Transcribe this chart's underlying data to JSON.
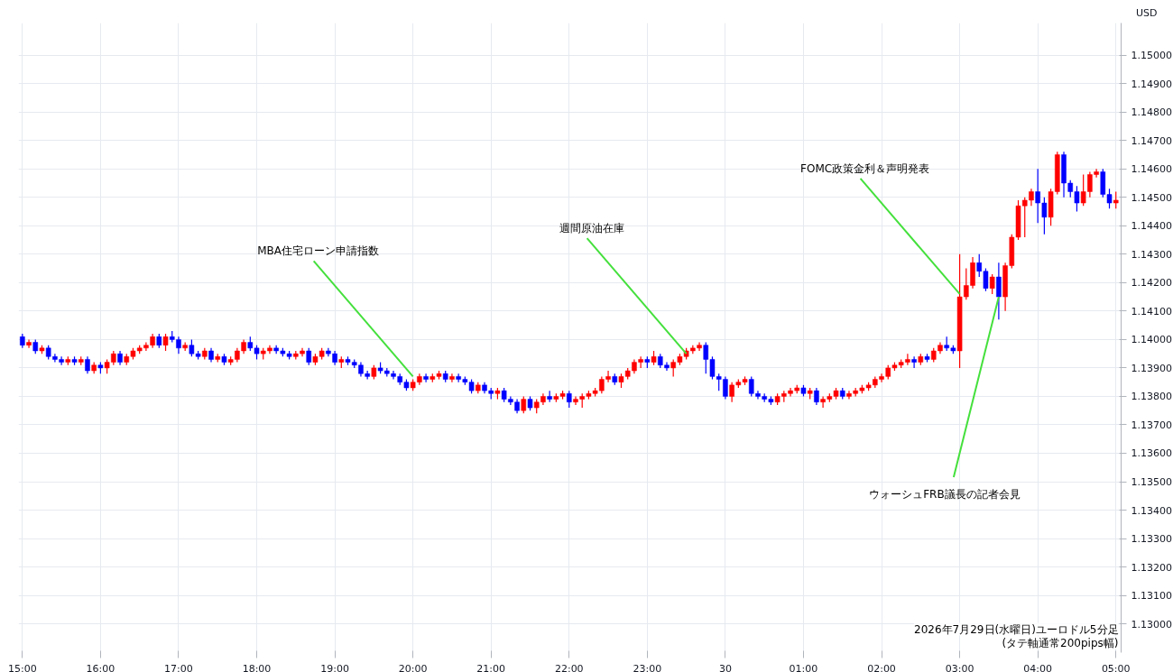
{
  "chart_data": {
    "type": "candlestick",
    "ylabel": "USD",
    "grid": true,
    "xlim": [
      "2026-07-29T14:57",
      "2026-07-30T05:04"
    ],
    "ylim": [
      1.12899,
      1.15113
    ],
    "xticks": [
      {
        "value": "2026-07-29T15:00",
        "label": "15:00"
      },
      {
        "value": "2026-07-29T16:00",
        "label": "16:00"
      },
      {
        "value": "2026-07-29T17:00",
        "label": "17:00"
      },
      {
        "value": "2026-07-29T18:00",
        "label": "18:00"
      },
      {
        "value": "2026-07-29T19:00",
        "label": "19:00"
      },
      {
        "value": "2026-07-29T20:00",
        "label": "20:00"
      },
      {
        "value": "2026-07-29T21:00",
        "label": "21:00"
      },
      {
        "value": "2026-07-29T22:00",
        "label": "22:00"
      },
      {
        "value": "2026-07-29T23:00",
        "label": "23:00"
      },
      {
        "value": "2026-07-30T00:00",
        "label": "30"
      },
      {
        "value": "2026-07-30T01:00",
        "label": "01:00"
      },
      {
        "value": "2026-07-30T02:00",
        "label": "02:00"
      },
      {
        "value": "2026-07-30T03:00",
        "label": "03:00"
      },
      {
        "value": "2026-07-30T04:00",
        "label": "04:00"
      },
      {
        "value": "2026-07-30T05:00",
        "label": "05:00"
      }
    ],
    "yticks": [
      {
        "value": 1.13,
        "label": "1.13000"
      },
      {
        "value": 1.131,
        "label": "1.13100"
      },
      {
        "value": 1.132,
        "label": "1.13200"
      },
      {
        "value": 1.133,
        "label": "1.13300"
      },
      {
        "value": 1.134,
        "label": "1.13400"
      },
      {
        "value": 1.135,
        "label": "1.13500"
      },
      {
        "value": 1.136,
        "label": "1.13600"
      },
      {
        "value": 1.137,
        "label": "1.13700"
      },
      {
        "value": 1.138,
        "label": "1.13800"
      },
      {
        "value": 1.139,
        "label": "1.13900"
      },
      {
        "value": 1.14,
        "label": "1.14000"
      },
      {
        "value": 1.141,
        "label": "1.14100"
      },
      {
        "value": 1.142,
        "label": "1.14200"
      },
      {
        "value": 1.143,
        "label": "1.14300"
      },
      {
        "value": 1.144,
        "label": "1.14400"
      },
      {
        "value": 1.145,
        "label": "1.14500"
      },
      {
        "value": 1.146,
        "label": "1.14600"
      },
      {
        "value": 1.147,
        "label": "1.14700"
      },
      {
        "value": 1.148,
        "label": "1.14800"
      },
      {
        "value": 1.149,
        "label": "1.14900"
      },
      {
        "value": 1.15,
        "label": "1.15000"
      }
    ],
    "annotations": [
      {
        "text": "MBA住宅ローン申請指数",
        "x": "2026-07-29T20:00",
        "y": 1.1387
      },
      {
        "text": "週間原油在庫",
        "x": "2026-07-29T23:30",
        "y": 1.1395
      },
      {
        "text": "FOMC政策金利＆声明発表",
        "x": "2026-07-30T03:00",
        "y": 1.1416
      },
      {
        "text": "ウォーシュFRB議長の記者会見",
        "x": "2026-07-30T03:30",
        "y": 1.1415
      },
      "2026年7月29日(水曜日)ユーロドル5分足",
      "(タテ軸通常200pips幅)"
    ],
    "x": [
      "2026-07-29T15:00",
      "2026-07-29T15:05",
      "2026-07-29T15:10",
      "2026-07-29T15:15",
      "2026-07-29T15:20",
      "2026-07-29T15:25",
      "2026-07-29T15:30",
      "2026-07-29T15:35",
      "2026-07-29T15:40",
      "2026-07-29T15:45",
      "2026-07-29T15:50",
      "2026-07-29T15:55",
      "2026-07-29T16:00",
      "2026-07-29T16:05",
      "2026-07-29T16:10",
      "2026-07-29T16:15",
      "2026-07-29T16:20",
      "2026-07-29T16:25",
      "2026-07-29T16:30",
      "2026-07-29T16:35",
      "2026-07-29T16:40",
      "2026-07-29T16:45",
      "2026-07-29T16:50",
      "2026-07-29T16:55",
      "2026-07-29T17:00",
      "2026-07-29T17:05",
      "2026-07-29T17:10",
      "2026-07-29T17:15",
      "2026-07-29T17:20",
      "2026-07-29T17:25",
      "2026-07-29T17:30",
      "2026-07-29T17:35",
      "2026-07-29T17:40",
      "2026-07-29T17:45",
      "2026-07-29T17:50",
      "2026-07-29T17:55",
      "2026-07-29T18:00",
      "2026-07-29T18:05",
      "2026-07-29T18:10",
      "2026-07-29T18:15",
      "2026-07-29T18:20",
      "2026-07-29T18:25",
      "2026-07-29T18:30",
      "2026-07-29T18:35",
      "2026-07-29T18:40",
      "2026-07-29T18:45",
      "2026-07-29T18:50",
      "2026-07-29T18:55",
      "2026-07-29T19:00",
      "2026-07-29T19:05",
      "2026-07-29T19:10",
      "2026-07-29T19:15",
      "2026-07-29T19:20",
      "2026-07-29T19:25",
      "2026-07-29T19:30",
      "2026-07-29T19:35",
      "2026-07-29T19:40",
      "2026-07-29T19:45",
      "2026-07-29T19:50",
      "2026-07-29T19:55",
      "2026-07-29T20:00",
      "2026-07-29T20:05",
      "2026-07-29T20:10",
      "2026-07-29T20:15",
      "2026-07-29T20:20",
      "2026-07-29T20:25",
      "2026-07-29T20:30",
      "2026-07-29T20:35",
      "2026-07-29T20:40",
      "2026-07-29T20:45",
      "2026-07-29T20:50",
      "2026-07-29T20:55",
      "2026-07-29T21:00",
      "2026-07-29T21:05",
      "2026-07-29T21:10",
      "2026-07-29T21:15",
      "2026-07-29T21:20",
      "2026-07-29T21:25",
      "2026-07-29T21:30",
      "2026-07-29T21:35",
      "2026-07-29T21:40",
      "2026-07-29T21:45",
      "2026-07-29T21:50",
      "2026-07-29T21:55",
      "2026-07-29T22:00",
      "2026-07-29T22:05",
      "2026-07-29T22:10",
      "2026-07-29T22:15",
      "2026-07-29T22:20",
      "2026-07-29T22:25",
      "2026-07-29T22:30",
      "2026-07-29T22:35",
      "2026-07-29T22:40",
      "2026-07-29T22:45",
      "2026-07-29T22:50",
      "2026-07-29T22:55",
      "2026-07-29T23:00",
      "2026-07-29T23:05",
      "2026-07-29T23:10",
      "2026-07-29T23:15",
      "2026-07-29T23:20",
      "2026-07-29T23:25",
      "2026-07-29T23:30",
      "2026-07-29T23:35",
      "2026-07-29T23:40",
      "2026-07-29T23:45",
      "2026-07-29T23:50",
      "2026-07-29T23:55",
      "2026-07-30T00:00",
      "2026-07-30T00:05",
      "2026-07-30T00:10",
      "2026-07-30T00:15",
      "2026-07-30T00:20",
      "2026-07-30T00:25",
      "2026-07-30T00:30",
      "2026-07-30T00:35",
      "2026-07-30T00:40",
      "2026-07-30T00:45",
      "2026-07-30T00:50",
      "2026-07-30T00:55",
      "2026-07-30T01:00",
      "2026-07-30T01:05",
      "2026-07-30T01:10",
      "2026-07-30T01:15",
      "2026-07-30T01:20",
      "2026-07-30T01:25",
      "2026-07-30T01:30",
      "2026-07-30T01:35",
      "2026-07-30T01:40",
      "2026-07-30T01:45",
      "2026-07-30T01:50",
      "2026-07-30T01:55",
      "2026-07-30T02:00",
      "2026-07-30T02:05",
      "2026-07-30T02:10",
      "2026-07-30T02:15",
      "2026-07-30T02:20",
      "2026-07-30T02:25",
      "2026-07-30T02:30",
      "2026-07-30T02:35",
      "2026-07-30T02:40",
      "2026-07-30T02:45",
      "2026-07-30T02:50",
      "2026-07-30T02:55",
      "2026-07-30T03:00",
      "2026-07-30T03:05",
      "2026-07-30T03:10",
      "2026-07-30T03:15",
      "2026-07-30T03:20",
      "2026-07-30T03:25",
      "2026-07-30T03:30",
      "2026-07-30T03:35",
      "2026-07-30T03:40",
      "2026-07-30T03:45",
      "2026-07-30T03:50",
      "2026-07-30T03:55",
      "2026-07-30T04:00",
      "2026-07-30T04:05",
      "2026-07-30T04:10",
      "2026-07-30T04:15",
      "2026-07-30T04:20",
      "2026-07-30T04:25",
      "2026-07-30T04:30",
      "2026-07-30T04:35",
      "2026-07-30T04:40",
      "2026-07-30T04:45",
      "2026-07-30T04:50",
      "2026-07-30T04:55",
      "2026-07-30T05:00"
    ],
    "ohlc": [
      [
        1.1401,
        1.1402,
        1.1397,
        1.1398
      ],
      [
        1.1398,
        1.14,
        1.1397,
        1.1399
      ],
      [
        1.1399,
        1.14,
        1.1395,
        1.1396
      ],
      [
        1.1396,
        1.1398,
        1.1395,
        1.1397
      ],
      [
        1.1397,
        1.1398,
        1.1393,
        1.1394
      ],
      [
        1.1394,
        1.1395,
        1.1392,
        1.1393
      ],
      [
        1.1393,
        1.1394,
        1.1391,
        1.1392
      ],
      [
        1.1392,
        1.1394,
        1.1391,
        1.1393
      ],
      [
        1.1393,
        1.1394,
        1.1391,
        1.1392
      ],
      [
        1.1392,
        1.1394,
        1.1391,
        1.1393
      ],
      [
        1.1393,
        1.1394,
        1.1388,
        1.1389
      ],
      [
        1.1389,
        1.1392,
        1.1388,
        1.1391
      ],
      [
        1.1391,
        1.1392,
        1.1388,
        1.139
      ],
      [
        1.139,
        1.1393,
        1.1388,
        1.1392
      ],
      [
        1.1392,
        1.1396,
        1.1391,
        1.1395
      ],
      [
        1.1395,
        1.1396,
        1.1391,
        1.1392
      ],
      [
        1.1392,
        1.1395,
        1.1391,
        1.1394
      ],
      [
        1.1394,
        1.1397,
        1.1393,
        1.1396
      ],
      [
        1.1396,
        1.1398,
        1.1395,
        1.1397
      ],
      [
        1.1397,
        1.1399,
        1.1396,
        1.1398
      ],
      [
        1.1398,
        1.1402,
        1.1397,
        1.1401
      ],
      [
        1.1401,
        1.1402,
        1.1397,
        1.1398
      ],
      [
        1.1398,
        1.1402,
        1.1396,
        1.1401
      ],
      [
        1.1401,
        1.1403,
        1.1399,
        1.14
      ],
      [
        1.14,
        1.1401,
        1.1395,
        1.1397
      ],
      [
        1.1397,
        1.1399,
        1.1396,
        1.1398
      ],
      [
        1.1398,
        1.14,
        1.1394,
        1.1395
      ],
      [
        1.1395,
        1.1396,
        1.1393,
        1.1394
      ],
      [
        1.1394,
        1.1397,
        1.1393,
        1.1396
      ],
      [
        1.1396,
        1.1397,
        1.1392,
        1.1393
      ],
      [
        1.1393,
        1.1395,
        1.1392,
        1.1394
      ],
      [
        1.1394,
        1.1395,
        1.1391,
        1.1392
      ],
      [
        1.1392,
        1.1394,
        1.1391,
        1.1393
      ],
      [
        1.1393,
        1.1397,
        1.1392,
        1.1396
      ],
      [
        1.1396,
        1.14,
        1.1395,
        1.1399
      ],
      [
        1.1399,
        1.1401,
        1.1396,
        1.1397
      ],
      [
        1.1397,
        1.1398,
        1.1393,
        1.1395
      ],
      [
        1.1395,
        1.1397,
        1.1393,
        1.1396
      ],
      [
        1.1396,
        1.1398,
        1.1395,
        1.1397
      ],
      [
        1.1397,
        1.1398,
        1.1395,
        1.1396
      ],
      [
        1.1396,
        1.1397,
        1.1394,
        1.1395
      ],
      [
        1.1395,
        1.1396,
        1.1393,
        1.1394
      ],
      [
        1.1394,
        1.1396,
        1.1393,
        1.1395
      ],
      [
        1.1395,
        1.1397,
        1.1394,
        1.1396
      ],
      [
        1.1396,
        1.1397,
        1.1391,
        1.1392
      ],
      [
        1.1392,
        1.1395,
        1.1391,
        1.1394
      ],
      [
        1.1394,
        1.1397,
        1.1393,
        1.1396
      ],
      [
        1.1396,
        1.1397,
        1.1394,
        1.1395
      ],
      [
        1.1395,
        1.1396,
        1.1391,
        1.1392
      ],
      [
        1.1392,
        1.1394,
        1.139,
        1.1393
      ],
      [
        1.1393,
        1.1394,
        1.1391,
        1.1392
      ],
      [
        1.1392,
        1.1393,
        1.139,
        1.1391
      ],
      [
        1.1391,
        1.1392,
        1.1387,
        1.1388
      ],
      [
        1.1388,
        1.1389,
        1.1386,
        1.1387
      ],
      [
        1.1387,
        1.1391,
        1.1386,
        1.139
      ],
      [
        1.139,
        1.1392,
        1.1388,
        1.1389
      ],
      [
        1.1389,
        1.139,
        1.1387,
        1.1388
      ],
      [
        1.1388,
        1.1389,
        1.1386,
        1.1387
      ],
      [
        1.1387,
        1.1388,
        1.1384,
        1.1385
      ],
      [
        1.1385,
        1.1386,
        1.1382,
        1.1383
      ],
      [
        1.1383,
        1.1386,
        1.1382,
        1.1385
      ],
      [
        1.1385,
        1.1388,
        1.1384,
        1.1387
      ],
      [
        1.1387,
        1.1388,
        1.1385,
        1.1386
      ],
      [
        1.1386,
        1.1388,
        1.1385,
        1.1387
      ],
      [
        1.1387,
        1.1389,
        1.1386,
        1.1388
      ],
      [
        1.1388,
        1.1389,
        1.1385,
        1.1386
      ],
      [
        1.1386,
        1.1388,
        1.1385,
        1.1387
      ],
      [
        1.1387,
        1.1388,
        1.1385,
        1.1386
      ],
      [
        1.1386,
        1.1387,
        1.1384,
        1.1385
      ],
      [
        1.1385,
        1.1386,
        1.1381,
        1.1382
      ],
      [
        1.1382,
        1.1385,
        1.1381,
        1.1384
      ],
      [
        1.1384,
        1.1385,
        1.1381,
        1.1382
      ],
      [
        1.1382,
        1.1383,
        1.1379,
        1.1381
      ],
      [
        1.1381,
        1.1383,
        1.1379,
        1.1382
      ],
      [
        1.1382,
        1.1383,
        1.1378,
        1.1379
      ],
      [
        1.1379,
        1.138,
        1.1377,
        1.1378
      ],
      [
        1.1378,
        1.1379,
        1.1374,
        1.1375
      ],
      [
        1.1375,
        1.138,
        1.1374,
        1.1379
      ],
      [
        1.1379,
        1.138,
        1.1375,
        1.1376
      ],
      [
        1.1376,
        1.1379,
        1.1374,
        1.1378
      ],
      [
        1.1378,
        1.1381,
        1.1377,
        1.138
      ],
      [
        1.138,
        1.1382,
        1.1378,
        1.1379
      ],
      [
        1.1379,
        1.1381,
        1.1378,
        1.138
      ],
      [
        1.138,
        1.1382,
        1.1379,
        1.1381
      ],
      [
        1.1381,
        1.1382,
        1.1376,
        1.1378
      ],
      [
        1.1378,
        1.138,
        1.1377,
        1.1379
      ],
      [
        1.1379,
        1.1381,
        1.1376,
        1.138
      ],
      [
        1.138,
        1.1382,
        1.1379,
        1.1381
      ],
      [
        1.1381,
        1.1383,
        1.138,
        1.1382
      ],
      [
        1.1382,
        1.1387,
        1.1381,
        1.1386
      ],
      [
        1.1386,
        1.1389,
        1.1385,
        1.1387
      ],
      [
        1.1387,
        1.1388,
        1.1384,
        1.1385
      ],
      [
        1.1385,
        1.1388,
        1.1383,
        1.1387
      ],
      [
        1.1387,
        1.139,
        1.1386,
        1.1389
      ],
      [
        1.1389,
        1.1393,
        1.1388,
        1.1392
      ],
      [
        1.1392,
        1.1394,
        1.139,
        1.1393
      ],
      [
        1.1393,
        1.1394,
        1.139,
        1.1392
      ],
      [
        1.1392,
        1.1396,
        1.1391,
        1.1394
      ],
      [
        1.1394,
        1.1395,
        1.139,
        1.1391
      ],
      [
        1.1391,
        1.1392,
        1.1389,
        1.139
      ],
      [
        1.139,
        1.1393,
        1.1387,
        1.1392
      ],
      [
        1.1392,
        1.1395,
        1.1391,
        1.1394
      ],
      [
        1.1394,
        1.1397,
        1.1393,
        1.1396
      ],
      [
        1.1396,
        1.1398,
        1.1395,
        1.1397
      ],
      [
        1.1397,
        1.1399,
        1.1396,
        1.1398
      ],
      [
        1.1398,
        1.1399,
        1.1388,
        1.1393
      ],
      [
        1.1393,
        1.1394,
        1.1386,
        1.1387
      ],
      [
        1.1387,
        1.1388,
        1.1382,
        1.1386
      ],
      [
        1.1386,
        1.1387,
        1.1379,
        1.138
      ],
      [
        1.138,
        1.1385,
        1.1378,
        1.1384
      ],
      [
        1.1384,
        1.1386,
        1.1383,
        1.1385
      ],
      [
        1.1385,
        1.1387,
        1.1384,
        1.1386
      ],
      [
        1.1386,
        1.1387,
        1.138,
        1.1381
      ],
      [
        1.1381,
        1.1382,
        1.1379,
        1.138
      ],
      [
        1.138,
        1.1381,
        1.1378,
        1.1379
      ],
      [
        1.1379,
        1.138,
        1.1377,
        1.1378
      ],
      [
        1.1378,
        1.1381,
        1.1377,
        1.138
      ],
      [
        1.138,
        1.1382,
        1.1378,
        1.1381
      ],
      [
        1.1381,
        1.1383,
        1.138,
        1.1382
      ],
      [
        1.1382,
        1.1384,
        1.1381,
        1.1383
      ],
      [
        1.1383,
        1.1384,
        1.138,
        1.1381
      ],
      [
        1.1381,
        1.1383,
        1.1379,
        1.1382
      ],
      [
        1.1382,
        1.1383,
        1.1377,
        1.1378
      ],
      [
        1.1378,
        1.138,
        1.1376,
        1.1379
      ],
      [
        1.1379,
        1.1381,
        1.1378,
        1.138
      ],
      [
        1.138,
        1.1383,
        1.1379,
        1.1382
      ],
      [
        1.1382,
        1.1383,
        1.1379,
        1.138
      ],
      [
        1.138,
        1.1382,
        1.1379,
        1.1381
      ],
      [
        1.1381,
        1.1383,
        1.138,
        1.1382
      ],
      [
        1.1382,
        1.1384,
        1.1381,
        1.1383
      ],
      [
        1.1383,
        1.1385,
        1.1382,
        1.1384
      ],
      [
        1.1384,
        1.1387,
        1.1383,
        1.1386
      ],
      [
        1.1386,
        1.1388,
        1.1385,
        1.1387
      ],
      [
        1.1387,
        1.1391,
        1.1386,
        1.139
      ],
      [
        1.139,
        1.1392,
        1.1389,
        1.1391
      ],
      [
        1.1391,
        1.1393,
        1.139,
        1.1392
      ],
      [
        1.1392,
        1.1395,
        1.1391,
        1.1393
      ],
      [
        1.1393,
        1.1394,
        1.139,
        1.1392
      ],
      [
        1.1392,
        1.1395,
        1.1391,
        1.1394
      ],
      [
        1.1394,
        1.1395,
        1.1392,
        1.1393
      ],
      [
        1.1393,
        1.1397,
        1.1392,
        1.1396
      ],
      [
        1.1396,
        1.1399,
        1.1395,
        1.1398
      ],
      [
        1.1398,
        1.1401,
        1.1396,
        1.1397
      ],
      [
        1.1397,
        1.1398,
        1.1395,
        1.1396
      ],
      [
        1.1396,
        1.143,
        1.139,
        1.1415
      ],
      [
        1.1415,
        1.1425,
        1.1414,
        1.1419
      ],
      [
        1.1419,
        1.1429,
        1.1418,
        1.1427
      ],
      [
        1.1427,
        1.143,
        1.1422,
        1.1424
      ],
      [
        1.1424,
        1.1425,
        1.1417,
        1.1418
      ],
      [
        1.1418,
        1.1423,
        1.1416,
        1.1422
      ],
      [
        1.1422,
        1.1427,
        1.1407,
        1.1415
      ],
      [
        1.1415,
        1.1427,
        1.141,
        1.1426
      ],
      [
        1.1426,
        1.1437,
        1.1425,
        1.1436
      ],
      [
        1.1436,
        1.1449,
        1.1435,
        1.1447
      ],
      [
        1.1447,
        1.145,
        1.1436,
        1.1449
      ],
      [
        1.1449,
        1.1453,
        1.1447,
        1.1452
      ],
      [
        1.1452,
        1.146,
        1.1441,
        1.1448
      ],
      [
        1.1448,
        1.145,
        1.1437,
        1.1443
      ],
      [
        1.1443,
        1.1453,
        1.144,
        1.1452
      ],
      [
        1.1452,
        1.1466,
        1.1451,
        1.1465
      ],
      [
        1.1465,
        1.1466,
        1.145,
        1.1455
      ],
      [
        1.1455,
        1.1456,
        1.145,
        1.1452
      ],
      [
        1.1452,
        1.1454,
        1.1445,
        1.1448
      ],
      [
        1.1448,
        1.1458,
        1.1447,
        1.1452
      ],
      [
        1.1452,
        1.1459,
        1.145,
        1.1458
      ],
      [
        1.1458,
        1.146,
        1.1457,
        1.1459
      ],
      [
        1.1459,
        1.146,
        1.145,
        1.1451
      ],
      [
        1.1451,
        1.1453,
        1.1446,
        1.1448
      ],
      [
        1.1448,
        1.1452,
        1.1446,
        1.1449
      ]
    ]
  }
}
